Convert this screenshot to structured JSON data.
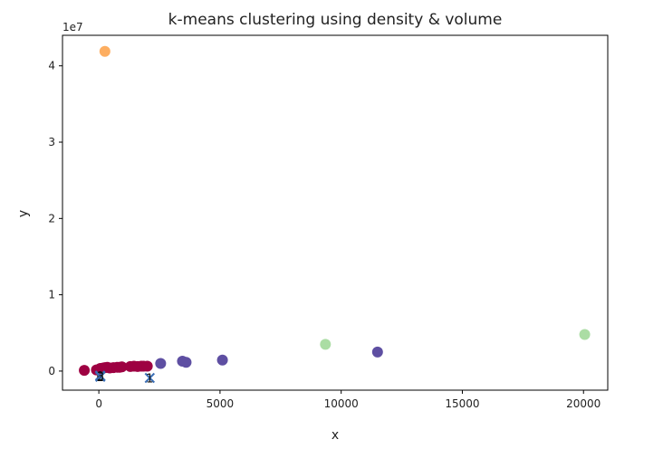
{
  "chart_data": {
    "type": "scatter",
    "title": "k-means clustering using density & volume",
    "xlabel": "x",
    "ylabel": "y",
    "y_offset_text": "1e7",
    "xlim": [
      -1500,
      21000
    ],
    "ylim": [
      -2500000,
      44000000
    ],
    "xticks": [
      0,
      5000,
      10000,
      15000,
      20000
    ],
    "yticks": [
      0,
      10000000,
      20000000,
      30000000,
      40000000
    ],
    "xtick_labels": [
      "0",
      "5000",
      "10000",
      "15000",
      "20000"
    ],
    "ytick_labels": [
      "0",
      "1",
      "2",
      "3",
      "4"
    ],
    "grid": false,
    "colors": {
      "cluster_0": "#9e0142",
      "cluster_1": "#5e4fa2",
      "cluster_2": "#abdda4",
      "cluster_3": "#fdae61",
      "centroid_marker": "#3b6fb6"
    },
    "series": [
      {
        "color": "#9e0142",
        "points": [
          [
            -600,
            100000
          ],
          [
            -100,
            150000
          ],
          [
            20,
            250000
          ],
          [
            60,
            350000
          ],
          [
            100,
            300000
          ],
          [
            180,
            400000
          ],
          [
            250,
            450000
          ],
          [
            350,
            500000
          ],
          [
            450,
            400000
          ],
          [
            600,
            450000
          ],
          [
            750,
            500000
          ],
          [
            850,
            500000
          ],
          [
            950,
            550000
          ],
          [
            1300,
            600000
          ],
          [
            1450,
            650000
          ],
          [
            1600,
            600000
          ],
          [
            1750,
            650000
          ],
          [
            1850,
            650000
          ],
          [
            2000,
            650000
          ]
        ]
      },
      {
        "color": "#5e4fa2",
        "points": [
          [
            2550,
            1000000
          ],
          [
            3450,
            1300000
          ],
          [
            3600,
            1150000
          ],
          [
            5100,
            1450000
          ],
          [
            11500,
            2500000
          ]
        ]
      },
      {
        "color": "#abdda4",
        "points": [
          [
            9350,
            3500000
          ],
          [
            20050,
            4800000
          ]
        ]
      },
      {
        "color": "#fdae61",
        "points": [
          [
            250,
            41900000
          ]
        ]
      }
    ],
    "centroids": [
      {
        "label": "0",
        "x": 50,
        "y": -600000
      },
      {
        "label": "1",
        "x": 2100,
        "y": -900000
      },
      {
        "label": "2",
        "x": 60,
        "y": -750000
      },
      {
        "label": "3",
        "x": 70,
        "y": -650000
      }
    ]
  }
}
